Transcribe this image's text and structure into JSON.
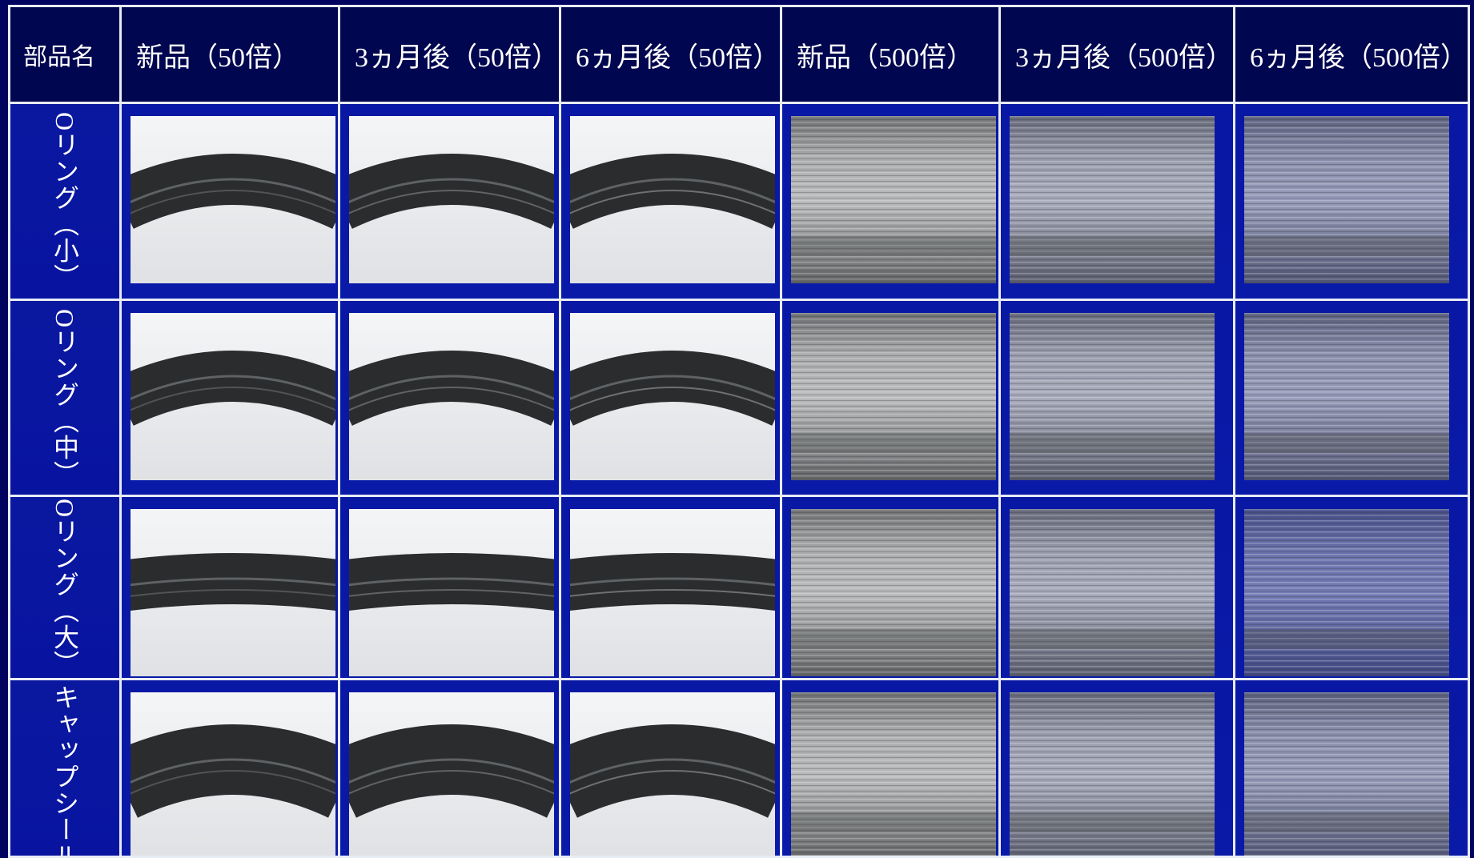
{
  "table": {
    "headers": [
      "部品名",
      "新品（50倍）",
      "3ヵ月後（50倍）",
      "6ヵ月後（50倍）",
      "新品（500倍）",
      "3ヵ月後（500倍）",
      "6ヵ月後（500倍）"
    ],
    "rows": [
      {
        "label": "Oリング（小）"
      },
      {
        "label": "Oリング（中）"
      },
      {
        "label": "Oリング（大）"
      },
      {
        "label": "キャップシール"
      }
    ]
  }
}
